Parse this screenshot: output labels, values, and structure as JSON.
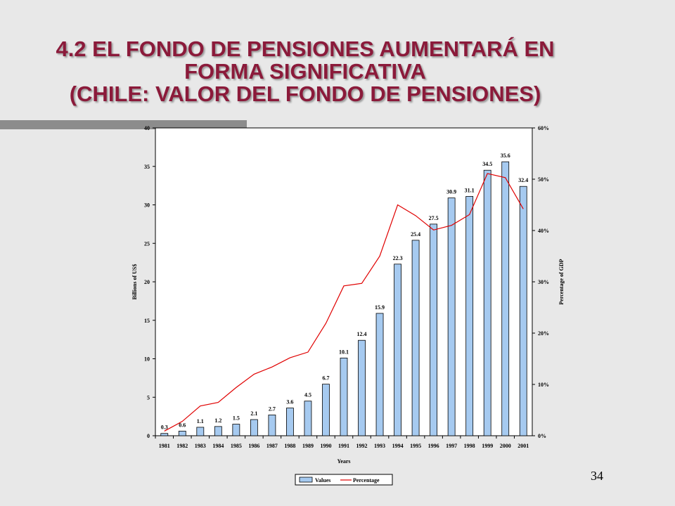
{
  "slide": {
    "title_lines": [
      "4.2  EL FONDO DE PENSIONES AUMENTARÁ EN",
      "FORMA SIGNIFICATIVA",
      "(CHILE: VALOR DEL FONDO DE  PENSIONES)"
    ],
    "page_number": "34"
  },
  "chart_data": {
    "type": "bar",
    "categories": [
      "1981",
      "1982",
      "1983",
      "1984",
      "1985",
      "1986",
      "1987",
      "1988",
      "1989",
      "1990",
      "1991",
      "1992",
      "1993",
      "1994",
      "1995",
      "1996",
      "1997",
      "1998",
      "1999",
      "2000",
      "2001"
    ],
    "series": [
      {
        "name": "Values",
        "type": "bar",
        "axis": "left",
        "color": "#a6caf0",
        "values": [
          0.3,
          0.6,
          1.1,
          1.2,
          1.5,
          2.1,
          2.7,
          3.6,
          4.5,
          6.7,
          10.1,
          12.4,
          15.9,
          22.3,
          25.4,
          27.5,
          30.9,
          31.1,
          34.5,
          35.6,
          32.4
        ],
        "labels": [
          "0.3",
          "0.6",
          "1.1",
          "1.2",
          "1.5",
          "2.1",
          "2.7",
          "3.6",
          "4.5",
          "6.7",
          "10.1",
          "12.4",
          "15.9",
          "22.3",
          "25.4",
          "27.5",
          "30.9",
          "31.1",
          "34.5",
          "35.6",
          "32.4"
        ]
      },
      {
        "name": "Percentage",
        "type": "line",
        "axis": "right",
        "color": "#e00000",
        "values": [
          0.9,
          2.8,
          5.8,
          6.5,
          9.4,
          12.0,
          13.4,
          15.2,
          16.3,
          21.9,
          29.2,
          29.7,
          35.0,
          45.0,
          42.9,
          40.1,
          41.0,
          43.1,
          51.1,
          50.3,
          44.2
        ]
      }
    ],
    "xlabel": "Years",
    "ylabel_left": "Billions of US$",
    "ylabel_right": "Percentage of GDP",
    "ylim_left": [
      0,
      40
    ],
    "yticks_left": [
      "0",
      "5",
      "10",
      "15",
      "20",
      "25",
      "30",
      "35",
      "40"
    ],
    "ylim_right": [
      0,
      60
    ],
    "yticks_right": [
      "0%",
      "10%",
      "20%",
      "30%",
      "40%",
      "50%",
      "60%"
    ],
    "grid": false,
    "legend_position": "bottom-center"
  }
}
